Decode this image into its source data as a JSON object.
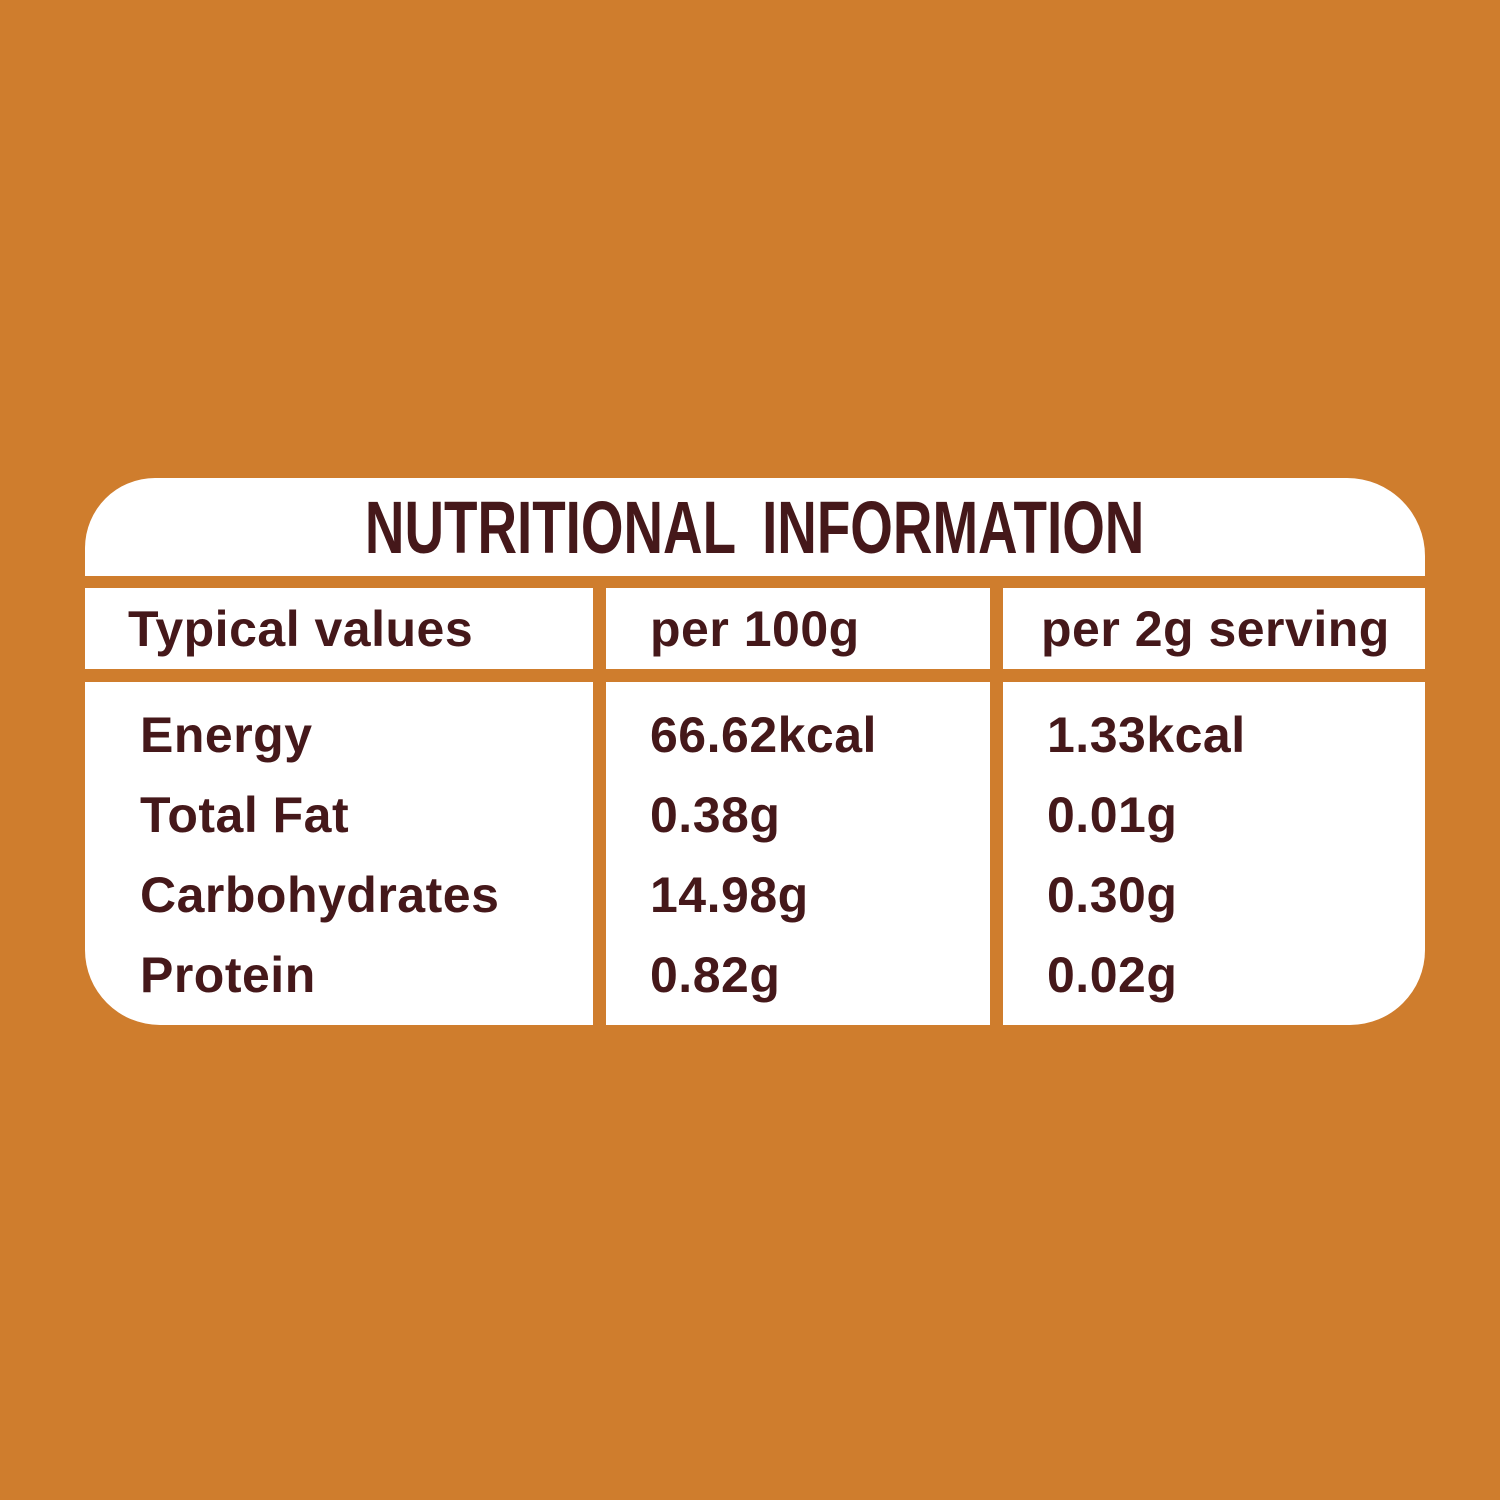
{
  "title": "NUTRITIONAL INFORMATION",
  "table": {
    "header": [
      "Typical values",
      "per 100g",
      "per 2g serving"
    ],
    "rows": [
      {
        "label": "Energy",
        "per100g": "66.62kcal",
        "perServing": "1.33kcal"
      },
      {
        "label": "Total Fat",
        "per100g": "0.38g",
        "perServing": "0.01g"
      },
      {
        "label": "Carbohydrates",
        "per100g": "14.98g",
        "perServing": "0.30g"
      },
      {
        "label": "Protein",
        "per100g": "0.82g",
        "perServing": "0.02g"
      }
    ]
  },
  "colors": {
    "background": "#CF7D2D",
    "card": "#FFFFFF",
    "text": "#45181A",
    "divider": "#CF7D2D"
  }
}
